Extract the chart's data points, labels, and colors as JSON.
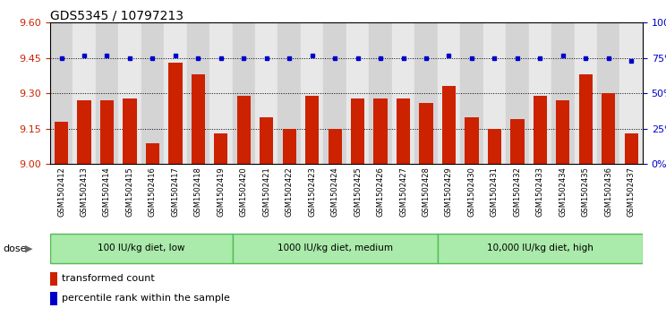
{
  "title": "GDS5345 / 10797213",
  "samples": [
    "GSM1502412",
    "GSM1502413",
    "GSM1502414",
    "GSM1502415",
    "GSM1502416",
    "GSM1502417",
    "GSM1502418",
    "GSM1502419",
    "GSM1502420",
    "GSM1502421",
    "GSM1502422",
    "GSM1502423",
    "GSM1502424",
    "GSM1502425",
    "GSM1502426",
    "GSM1502427",
    "GSM1502428",
    "GSM1502429",
    "GSM1502430",
    "GSM1502431",
    "GSM1502432",
    "GSM1502433",
    "GSM1502434",
    "GSM1502435",
    "GSM1502436",
    "GSM1502437"
  ],
  "bar_values": [
    9.18,
    9.27,
    9.27,
    9.28,
    9.09,
    9.43,
    9.38,
    9.13,
    9.29,
    9.2,
    9.15,
    9.29,
    9.15,
    9.28,
    9.28,
    9.28,
    9.26,
    9.33,
    9.2,
    9.15,
    9.19,
    9.29,
    9.27,
    9.38,
    9.3,
    9.13
  ],
  "percentile_values": [
    9.45,
    9.46,
    9.46,
    9.45,
    9.45,
    9.46,
    9.45,
    9.45,
    9.45,
    9.45,
    9.45,
    9.46,
    9.45,
    9.45,
    9.45,
    9.45,
    9.45,
    9.46,
    9.45,
    9.45,
    9.45,
    9.45,
    9.46,
    9.45,
    9.45,
    9.44
  ],
  "ylim": [
    9.0,
    9.6
  ],
  "yticks_left": [
    9.0,
    9.15,
    9.3,
    9.45,
    9.6
  ],
  "yticks_right_pct": [
    0,
    25,
    50,
    75,
    100
  ],
  "bar_color": "#cc2200",
  "percentile_color": "#0000cc",
  "groups": [
    {
      "label": "100 IU/kg diet, low",
      "start": 0,
      "end": 7
    },
    {
      "label": "1000 IU/kg diet, medium",
      "start": 8,
      "end": 16
    },
    {
      "label": "10,000 IU/kg diet, high",
      "start": 17,
      "end": 25
    }
  ],
  "group_color": "#aaeaaa",
  "group_border_color": "#55bb55",
  "dose_label": "dose",
  "legend_bar_label": "transformed count",
  "legend_dot_label": "percentile rank within the sample",
  "xtick_bg_even": "#d4d4d4",
  "xtick_bg_odd": "#e8e8e8"
}
